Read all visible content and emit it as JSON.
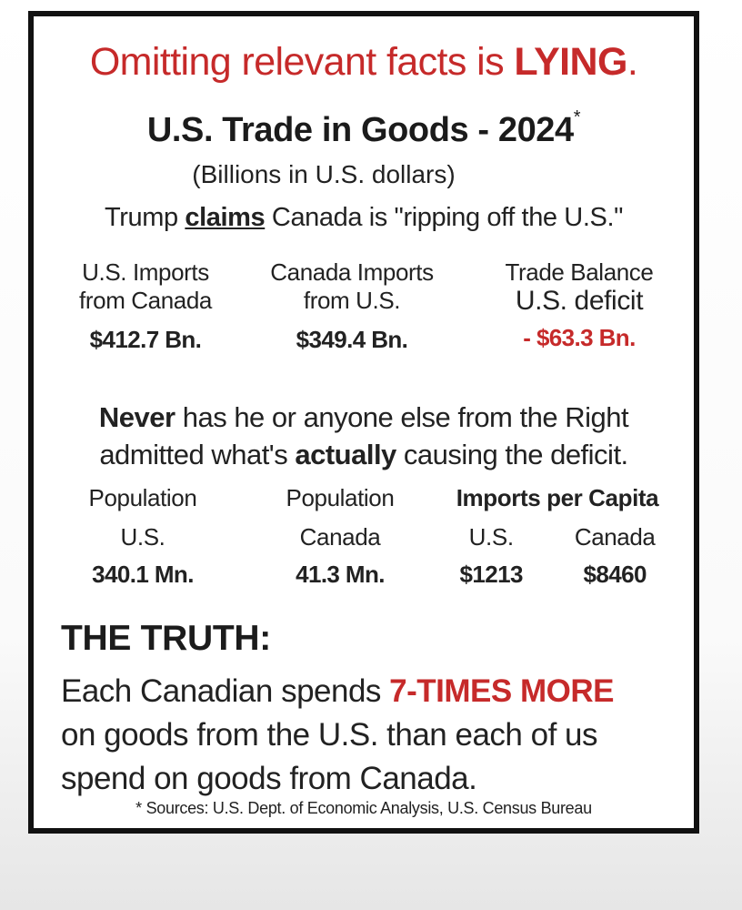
{
  "headline": {
    "text": "Omitting relevant facts is ",
    "emphasis": "LYING",
    "end": "."
  },
  "title": {
    "text": "U.S. Trade in Goods - 2024",
    "asterisk": "*"
  },
  "subtitle": "(Billions in U.S. dollars)",
  "claim": {
    "before": "Trump ",
    "underlined": "claims",
    "after": " Canada is \"ripping off the U.S.\""
  },
  "trade": {
    "imports_from_canada": {
      "line1": "U.S. Imports",
      "line2": "from Canada",
      "value": "$412.7 Bn."
    },
    "canada_imports": {
      "line1": "Canada Imports",
      "line2": "from U.S.",
      "value": "$349.4 Bn."
    },
    "balance": {
      "line1": "Trade Balance",
      "line2": "U.S. deficit",
      "value": "- $63.3 Bn."
    }
  },
  "never": {
    "bold1": "Never",
    "text1": " has he or anyone else from the Right",
    "text2a": "admitted what's ",
    "bold2": "actually",
    "text2b": " causing the deficit."
  },
  "population": {
    "us": {
      "line1": "Population",
      "line2": "U.S.",
      "value": "340.1 Mn."
    },
    "canada": {
      "line1": "Population",
      "line2": "Canada",
      "value": "41.3 Mn."
    },
    "per_capita": {
      "heading": "Imports per Capita",
      "us_label": "U.S.",
      "us_value": "$1213",
      "canada_label": "Canada",
      "canada_value": "$8460"
    }
  },
  "truth": {
    "heading": "THE TRUTH:",
    "line1a": "Each Canadian spends ",
    "line1b": "7-TIMES MORE",
    "line2": "on goods from the U.S. than each of us",
    "line3": "spend on goods from Canada."
  },
  "sources": "* Sources: U.S. Dept. of Economic Analysis, U.S. Census Bureau",
  "colors": {
    "accent_red": "#c62a2a",
    "text": "#222222",
    "border": "#111111"
  }
}
